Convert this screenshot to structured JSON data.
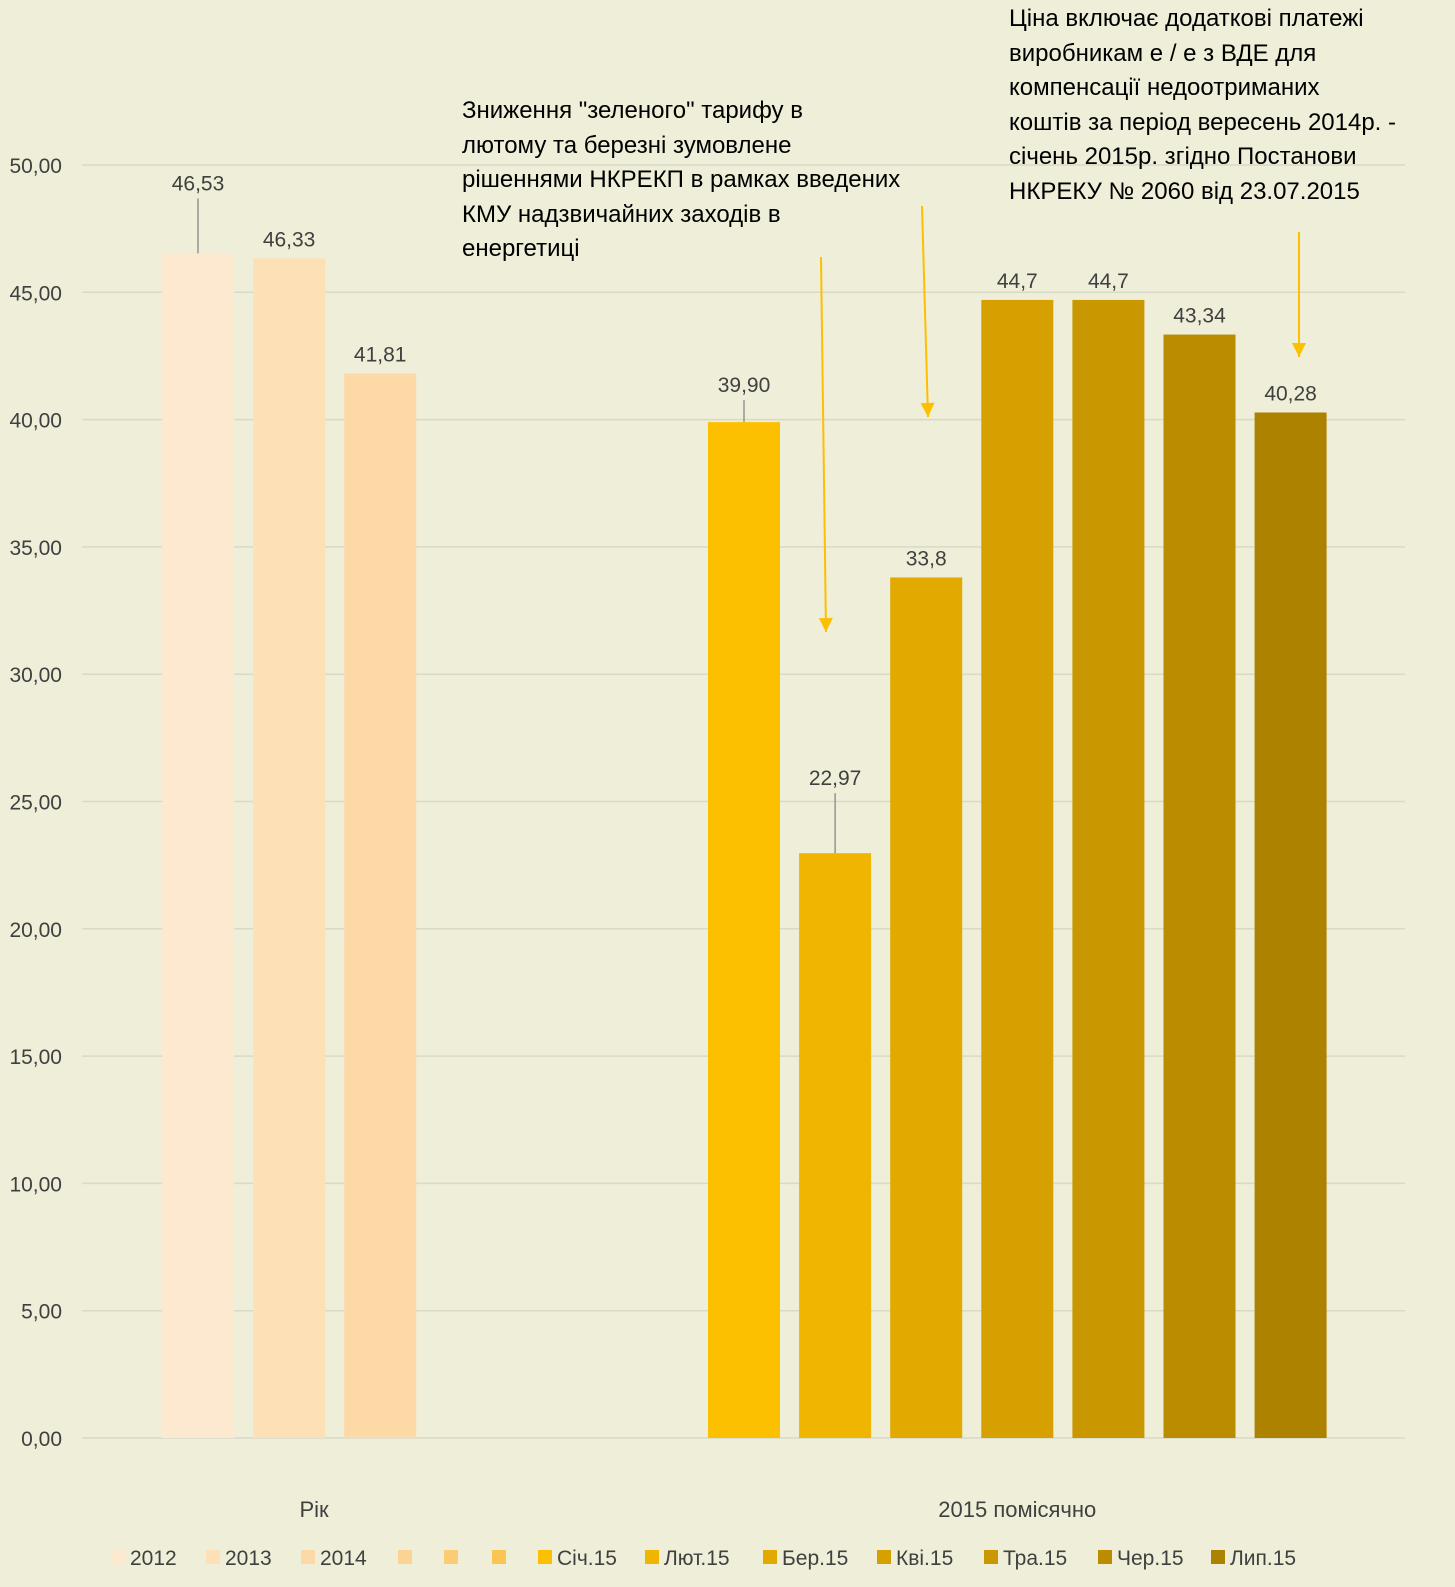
{
  "chart_data": {
    "type": "bar",
    "ylim": [
      0,
      50
    ],
    "yticks": [
      "0,00",
      "5,00",
      "10,00",
      "15,00",
      "20,00",
      "25,00",
      "30,00",
      "35,00",
      "40,00",
      "45,00",
      "50,00"
    ],
    "grid": true,
    "legend_position": "bottom",
    "groups": [
      {
        "label": "Рік",
        "members": [
          "2012",
          "2013",
          "2014"
        ]
      },
      {
        "label": "2015 помісячно",
        "members": [
          "Січ.15",
          "Лют.15",
          "Бер.15",
          "Кві.15",
          "Тра.15",
          "Чер.15",
          "Лип.15"
        ]
      }
    ],
    "series": [
      {
        "name": "2012",
        "value": 46.53,
        "label": "46,53",
        "color": "#fde9cf"
      },
      {
        "name": "2013",
        "value": 46.33,
        "label": "46,33",
        "color": "#fde0b5"
      },
      {
        "name": "2014",
        "value": 41.81,
        "label": "41,81",
        "color": "#fdd9a6"
      },
      {
        "name": "",
        "value": null,
        "label": "",
        "color": "#fcd491"
      },
      {
        "name": "",
        "value": null,
        "label": "",
        "color": "#fccc74"
      },
      {
        "name": "",
        "value": null,
        "label": "",
        "color": "#fcc553"
      },
      {
        "name": "Січ.15",
        "value": 39.9,
        "label": "39,90",
        "color": "#fdc000"
      },
      {
        "name": "Лют.15",
        "value": 22.97,
        "label": "22,97",
        "color": "#efb501"
      },
      {
        "name": "Бер.15",
        "value": 33.8,
        "label": "33,8",
        "color": "#e2aa00"
      },
      {
        "name": "Кві.15",
        "value": 44.7,
        "label": "44,7",
        "color": "#d5a000"
      },
      {
        "name": "Тра.15",
        "value": 44.7,
        "label": "44,7",
        "color": "#c99700"
      },
      {
        "name": "Чер.15",
        "value": 43.34,
        "label": "43,34",
        "color": "#bb8c00"
      },
      {
        "name": "Лип.15",
        "value": 40.28,
        "label": "40,28",
        "color": "#ad8200"
      }
    ],
    "annotations": [
      {
        "lines": [
          "Зниження \"зеленого\" тарифу  в",
          "лютому та березні зумовлене",
          "рішеннями НКРЕКП в рамках введених",
          "КМУ надзвичайних заходів в",
          "енергетиці"
        ],
        "targets": [
          "Лют.15",
          "Бер.15"
        ]
      },
      {
        "lines": [
          "Ціна включає додаткові платежі",
          "виробникам  е / е з ВДЕ для",
          "компенсації недоотриманих",
          "коштів за період вересень 2014р. -",
          "січень 2015р. згідно Постанови",
          "НКРЕКУ № 2060  від 23.07.2015"
        ],
        "targets": [
          "Лип.15"
        ]
      }
    ],
    "colors": {
      "background": "#efeed8",
      "grid": "#d9d9c8",
      "text": "#404040",
      "arrow": "#fdc000"
    }
  }
}
